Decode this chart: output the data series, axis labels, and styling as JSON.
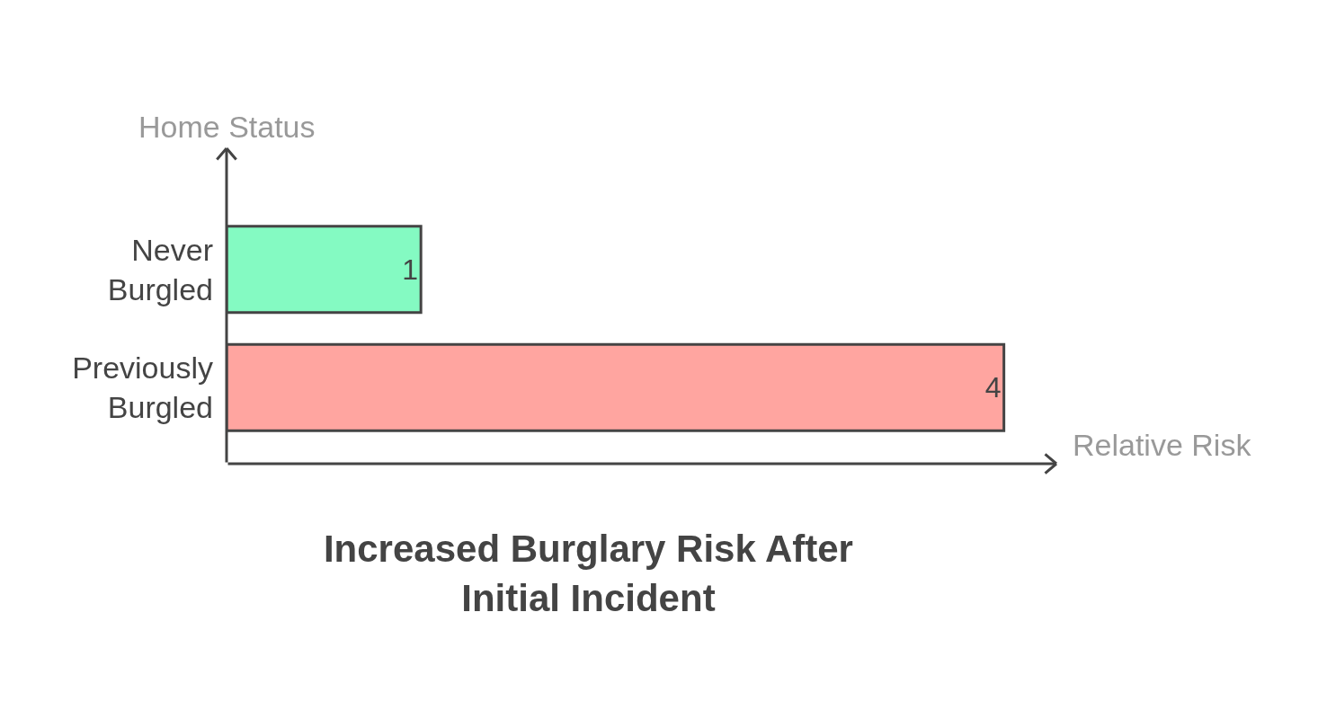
{
  "chart_data": {
    "type": "bar",
    "orientation": "horizontal",
    "title": "Increased Burglary Risk After Initial Incident",
    "xlabel": "Relative Risk",
    "ylabel": "Home Status",
    "categories": [
      "Never Burgled",
      "Previously Burgled"
    ],
    "values": [
      1,
      4
    ],
    "colors": [
      "#84fac2",
      "#ffa5a0"
    ],
    "data_labels": true,
    "xlim": [
      0,
      4.27
    ],
    "tick_labels": "y"
  }
}
